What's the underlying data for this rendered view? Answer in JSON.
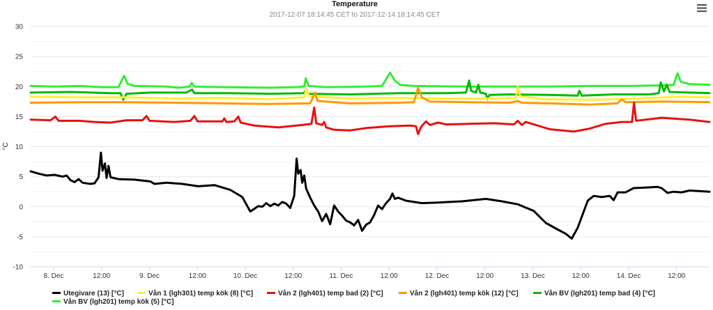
{
  "chart_data": {
    "type": "line",
    "title": "Temperature",
    "subtitle": "2017-12-07 18:14:45 CET to 2017-12-14 18:14:45 CET",
    "ylabel": "°C",
    "ylim": [
      -10,
      30
    ],
    "xlim_hours": [
      0,
      170
    ],
    "yticks": [
      30,
      25,
      20,
      15,
      10,
      5,
      0,
      -5,
      -10
    ],
    "xticks": [
      {
        "h": 5.75,
        "label": "8. Dec"
      },
      {
        "h": 17.75,
        "label": "12:00"
      },
      {
        "h": 29.75,
        "label": "9. Dec"
      },
      {
        "h": 41.75,
        "label": "12:00"
      },
      {
        "h": 53.75,
        "label": "10. Dec"
      },
      {
        "h": 65.75,
        "label": "12:00"
      },
      {
        "h": 77.75,
        "label": "11. Dec"
      },
      {
        "h": 89.75,
        "label": "12:00"
      },
      {
        "h": 101.75,
        "label": "12. Dec"
      },
      {
        "h": 113.75,
        "label": "12:00"
      },
      {
        "h": 125.75,
        "label": "13. Dec"
      },
      {
        "h": 137.75,
        "label": "12:00"
      },
      {
        "h": 149.75,
        "label": "14. Dec"
      },
      {
        "h": 161.75,
        "label": "12:00"
      }
    ],
    "grid": true,
    "legend_position": "bottom",
    "series": [
      {
        "name": "Vån BV (lgh201) temp kök (5) [°C]",
        "color": "#33ee33",
        "points": [
          [
            0,
            20.1
          ],
          [
            6,
            20.0
          ],
          [
            12,
            20.1
          ],
          [
            18,
            19.9
          ],
          [
            22,
            19.9
          ],
          [
            23.4,
            21.8
          ],
          [
            24.2,
            20.5
          ],
          [
            26,
            20.1
          ],
          [
            34,
            20.0
          ],
          [
            37,
            19.8
          ],
          [
            39.8,
            20.0
          ],
          [
            40.3,
            20.6
          ],
          [
            41,
            20.0
          ],
          [
            48,
            19.9
          ],
          [
            60,
            19.8
          ],
          [
            66,
            19.9
          ],
          [
            68.5,
            20.0
          ],
          [
            68.9,
            21.4
          ],
          [
            69.6,
            20.1
          ],
          [
            74,
            19.9
          ],
          [
            84,
            20.0
          ],
          [
            88,
            20.1
          ],
          [
            90,
            22.3
          ],
          [
            91.2,
            21.0
          ],
          [
            92.5,
            20.3
          ],
          [
            96,
            20.1
          ],
          [
            110,
            20.0
          ],
          [
            122,
            20.0
          ],
          [
            130,
            20.0
          ],
          [
            140,
            20.1
          ],
          [
            150,
            20.1
          ],
          [
            158,
            20.2
          ],
          [
            161,
            20.3
          ],
          [
            162,
            22.2
          ],
          [
            162.8,
            20.8
          ],
          [
            165,
            20.4
          ],
          [
            170,
            20.3
          ]
        ]
      },
      {
        "name": "Vån BV (lgh201) temp bad (4) [°C]",
        "color": "#00bb00",
        "points": [
          [
            0,
            19.0
          ],
          [
            10,
            19.1
          ],
          [
            20,
            18.9
          ],
          [
            22.5,
            18.9
          ],
          [
            23.2,
            17.8
          ],
          [
            24,
            18.8
          ],
          [
            30,
            19.0
          ],
          [
            39,
            19.0
          ],
          [
            40.4,
            19.5
          ],
          [
            41,
            18.9
          ],
          [
            50,
            18.9
          ],
          [
            60,
            18.8
          ],
          [
            68.4,
            18.9
          ],
          [
            68.9,
            19.4
          ],
          [
            69.6,
            18.8
          ],
          [
            80,
            18.7
          ],
          [
            92,
            18.9
          ],
          [
            104,
            18.9
          ],
          [
            109,
            19.0
          ],
          [
            109.8,
            21.0
          ],
          [
            110.3,
            19.3
          ],
          [
            111.5,
            19.0
          ],
          [
            112.1,
            20.3
          ],
          [
            112.6,
            19.0
          ],
          [
            114,
            18.8
          ],
          [
            114.4,
            17.9
          ],
          [
            114.9,
            18.6
          ],
          [
            120,
            18.7
          ],
          [
            130,
            18.6
          ],
          [
            137,
            18.5
          ],
          [
            137.4,
            19.3
          ],
          [
            138,
            18.5
          ],
          [
            146,
            18.7
          ],
          [
            155,
            18.7
          ],
          [
            157.3,
            18.9
          ],
          [
            157.8,
            20.7
          ],
          [
            158.6,
            19.2
          ],
          [
            159.3,
            20.3
          ],
          [
            160,
            19.1
          ],
          [
            165,
            19.0
          ],
          [
            170,
            18.9
          ]
        ]
      },
      {
        "name": "Vån 1 (lgh301) temp kök (8) [°C]",
        "color": "#ffee33",
        "points": [
          [
            0,
            18.3
          ],
          [
            12,
            18.2
          ],
          [
            24,
            18.2
          ],
          [
            36,
            18.0
          ],
          [
            48,
            18.1
          ],
          [
            60,
            17.9
          ],
          [
            68.5,
            18.2
          ],
          [
            69,
            19.6
          ],
          [
            69.8,
            18.4
          ],
          [
            80,
            18.0
          ],
          [
            92,
            18.1
          ],
          [
            104,
            18.0
          ],
          [
            116,
            18.0
          ],
          [
            121.5,
            18.1
          ],
          [
            122,
            20.0
          ],
          [
            122.6,
            18.4
          ],
          [
            128,
            17.9
          ],
          [
            140,
            17.8
          ],
          [
            152,
            18.0
          ],
          [
            162,
            18.3
          ],
          [
            170,
            18.2
          ]
        ]
      },
      {
        "name": "Vån 2 (lgh401) temp kök (12) [°C]",
        "color": "#ff9900",
        "points": [
          [
            0,
            17.3
          ],
          [
            12,
            17.4
          ],
          [
            24,
            17.4
          ],
          [
            36,
            17.3
          ],
          [
            48,
            17.2
          ],
          [
            60,
            17.1
          ],
          [
            70,
            17.2
          ],
          [
            71.2,
            19.0
          ],
          [
            71.8,
            17.6
          ],
          [
            80,
            17.2
          ],
          [
            92,
            17.3
          ],
          [
            96,
            17.4
          ],
          [
            97,
            19.8
          ],
          [
            98,
            18.2
          ],
          [
            100,
            17.5
          ],
          [
            110,
            17.4
          ],
          [
            120,
            17.3
          ],
          [
            122,
            17.6
          ],
          [
            123,
            17.3
          ],
          [
            130,
            17.2
          ],
          [
            140,
            17.0
          ],
          [
            147,
            17.2
          ],
          [
            148,
            17.9
          ],
          [
            149,
            17.4
          ],
          [
            158,
            17.5
          ],
          [
            170,
            17.4
          ]
        ]
      },
      {
        "name": "Vån 2 (lgh401) temp bad (2) [°C]",
        "color": "#e81010",
        "points": [
          [
            0,
            14.5
          ],
          [
            5,
            14.4
          ],
          [
            6.2,
            15.0
          ],
          [
            7,
            14.3
          ],
          [
            12,
            14.3
          ],
          [
            16,
            14.1
          ],
          [
            20,
            14.0
          ],
          [
            24,
            14.4
          ],
          [
            28,
            14.4
          ],
          [
            29,
            15.1
          ],
          [
            29.8,
            14.3
          ],
          [
            36,
            14.1
          ],
          [
            40,
            14.3
          ],
          [
            41,
            15.1
          ],
          [
            41.8,
            14.2
          ],
          [
            48,
            14.2
          ],
          [
            48.5,
            14.7
          ],
          [
            49,
            14.1
          ],
          [
            51,
            14.2
          ],
          [
            52,
            15.0
          ],
          [
            52.6,
            14.0
          ],
          [
            56,
            13.5
          ],
          [
            62,
            13.2
          ],
          [
            68,
            13.6
          ],
          [
            70.3,
            13.8
          ],
          [
            71,
            16.5
          ],
          [
            71.5,
            13.9
          ],
          [
            73,
            13.6
          ],
          [
            73.5,
            14.1
          ],
          [
            74,
            13.2
          ],
          [
            76,
            12.8
          ],
          [
            80,
            12.7
          ],
          [
            84,
            13.1
          ],
          [
            90,
            13.4
          ],
          [
            95,
            13.5
          ],
          [
            96.5,
            13.4
          ],
          [
            97,
            12.1
          ],
          [
            97.8,
            13.3
          ],
          [
            99,
            14.2
          ],
          [
            100,
            13.6
          ],
          [
            102,
            14.0
          ],
          [
            104,
            13.7
          ],
          [
            110,
            13.8
          ],
          [
            116,
            13.9
          ],
          [
            121,
            13.7
          ],
          [
            122,
            14.3
          ],
          [
            123,
            13.6
          ],
          [
            124,
            14.1
          ],
          [
            126,
            13.7
          ],
          [
            130,
            12.9
          ],
          [
            136,
            12.5
          ],
          [
            140,
            13.0
          ],
          [
            144,
            13.8
          ],
          [
            148,
            14.1
          ],
          [
            150.6,
            14.1
          ],
          [
            151.1,
            17.3
          ],
          [
            151.6,
            14.3
          ],
          [
            158,
            14.8
          ],
          [
            165,
            14.5
          ],
          [
            170,
            14.1
          ]
        ]
      },
      {
        "name": "Utegivare (13) [°C]",
        "color": "#000000",
        "points": [
          [
            0,
            5.9
          ],
          [
            2,
            5.5
          ],
          [
            4,
            5.2
          ],
          [
            6,
            5.3
          ],
          [
            8,
            5.0
          ],
          [
            9,
            5.2
          ],
          [
            10,
            4.4
          ],
          [
            11,
            4.1
          ],
          [
            12,
            4.6
          ],
          [
            13,
            4.0
          ],
          [
            15,
            3.8
          ],
          [
            16,
            3.9
          ],
          [
            17,
            4.9
          ],
          [
            17.6,
            9.0
          ],
          [
            18,
            6.0
          ],
          [
            18.6,
            7.2
          ],
          [
            19,
            4.8
          ],
          [
            19.5,
            6.8
          ],
          [
            20,
            4.9
          ],
          [
            22,
            4.6
          ],
          [
            26,
            4.5
          ],
          [
            30,
            4.2
          ],
          [
            31,
            3.8
          ],
          [
            34,
            4.0
          ],
          [
            38,
            3.8
          ],
          [
            42,
            3.4
          ],
          [
            46,
            3.6
          ],
          [
            50,
            2.8
          ],
          [
            53,
            1.6
          ],
          [
            55,
            -0.8
          ],
          [
            57,
            0.1
          ],
          [
            58,
            0.0
          ],
          [
            59,
            0.6
          ],
          [
            60,
            0.1
          ],
          [
            61,
            0.5
          ],
          [
            62,
            0.2
          ],
          [
            63,
            0.8
          ],
          [
            64,
            0.5
          ],
          [
            65,
            -0.2
          ],
          [
            66,
            1.8
          ],
          [
            66.6,
            8.0
          ],
          [
            67,
            5.5
          ],
          [
            67.6,
            6.1
          ],
          [
            68,
            4.0
          ],
          [
            68.5,
            5.2
          ],
          [
            69,
            3.0
          ],
          [
            70,
            1.5
          ],
          [
            71,
            0.2
          ],
          [
            72,
            -0.8
          ],
          [
            73,
            -2.4
          ],
          [
            74,
            -1.2
          ],
          [
            75,
            -2.9
          ],
          [
            76,
            0.2
          ],
          [
            77,
            -0.8
          ],
          [
            78,
            -1.5
          ],
          [
            79,
            -2.3
          ],
          [
            80,
            -2.6
          ],
          [
            81,
            -3.1
          ],
          [
            82,
            -2.2
          ],
          [
            83,
            -4.0
          ],
          [
            84,
            -3.0
          ],
          [
            85,
            -2.6
          ],
          [
            86,
            -1.4
          ],
          [
            87,
            0.2
          ],
          [
            88,
            -0.4
          ],
          [
            89,
            0.6
          ],
          [
            90,
            1.3
          ],
          [
            90.6,
            2.2
          ],
          [
            91.2,
            1.3
          ],
          [
            92,
            1.5
          ],
          [
            94,
            1.0
          ],
          [
            98,
            0.6
          ],
          [
            102,
            0.7
          ],
          [
            108,
            0.9
          ],
          [
            114,
            1.3
          ],
          [
            118,
            0.9
          ],
          [
            122,
            0.4
          ],
          [
            126,
            -0.7
          ],
          [
            129,
            -2.7
          ],
          [
            132,
            -3.8
          ],
          [
            134,
            -4.5
          ],
          [
            135.5,
            -5.3
          ],
          [
            137,
            -3.5
          ],
          [
            138.5,
            -0.8
          ],
          [
            139.5,
            1.0
          ],
          [
            141,
            1.8
          ],
          [
            143,
            1.6
          ],
          [
            145,
            1.8
          ],
          [
            146,
            1.1
          ],
          [
            147,
            2.4
          ],
          [
            149,
            2.4
          ],
          [
            151,
            3.1
          ],
          [
            154,
            3.2
          ],
          [
            157,
            3.3
          ],
          [
            158,
            3.1
          ],
          [
            159.5,
            2.3
          ],
          [
            161,
            2.5
          ],
          [
            163,
            2.4
          ],
          [
            165,
            2.7
          ],
          [
            170,
            2.5
          ]
        ]
      }
    ],
    "legend": [
      {
        "name": "Utegivare (13) [°C]",
        "color": "#000000"
      },
      {
        "name": "Vån 1 (lgh301) temp kök (8) [°C]",
        "color": "#ffee33"
      },
      {
        "name": "Vån 2 (lgh401) temp bad (2) [°C]",
        "color": "#e81010"
      },
      {
        "name": "Vån 2 (lgh401) temp kök (12) [°C]",
        "color": "#ff9900"
      },
      {
        "name": "Vån BV (lgh201) temp bad (4) [°C]",
        "color": "#00bb00"
      },
      {
        "name": "Vån BV (lgh201) temp kök (5) [°C]",
        "color": "#33ee33"
      }
    ]
  },
  "menu": {
    "icon": "hamburger-menu-icon"
  }
}
